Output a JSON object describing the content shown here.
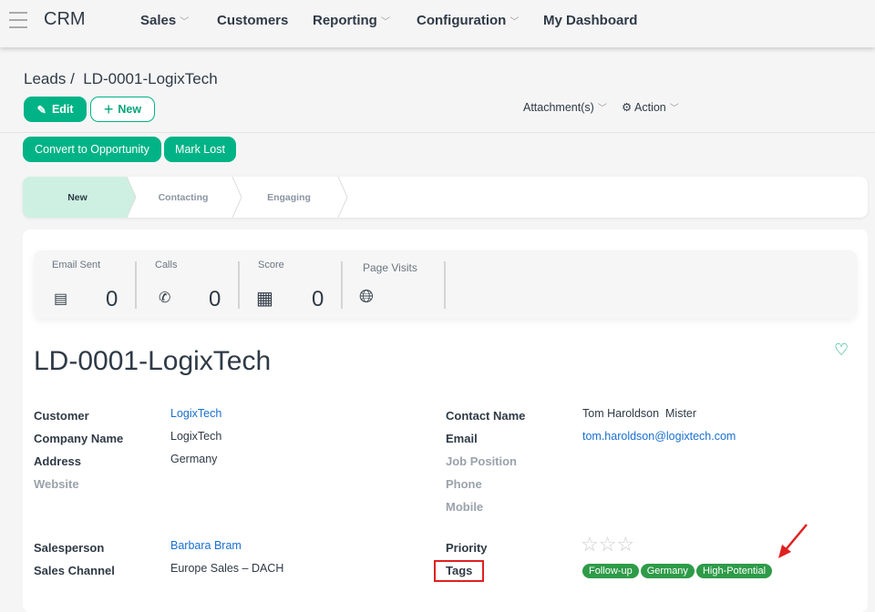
{
  "app": {
    "name": "CRM"
  },
  "nav": [
    {
      "label": "Sales",
      "dropdown": true
    },
    {
      "label": "Customers"
    },
    {
      "label": "Reporting",
      "dropdown": true
    },
    {
      "label": "Configuration",
      "dropdown": true
    },
    {
      "label": "My Dashboard"
    }
  ],
  "breadcrumb": {
    "parent": "Leads",
    "sep": "/",
    "current": "LD-0001-LogixTech"
  },
  "toolbar": {
    "edit": "Edit",
    "new": "New",
    "attachments": "Attachment(s)",
    "action": "Action"
  },
  "actions": {
    "convert": "Convert to Opportunity",
    "mark_lost": "Mark Lost"
  },
  "stages": [
    {
      "label": "New",
      "active": true
    },
    {
      "label": "Contacting"
    },
    {
      "label": "Engaging"
    }
  ],
  "stats": [
    {
      "label": "Email Sent",
      "value": "0",
      "icon": "inbox-icon"
    },
    {
      "label": "Calls",
      "value": "0",
      "icon": "phone-icon"
    },
    {
      "label": "Score",
      "value": "0",
      "icon": "calculator-icon"
    },
    {
      "label": "Page Visits",
      "value": "",
      "icon": "globe-icon"
    }
  ],
  "record": {
    "title": "LD-0001-LogixTech",
    "left": [
      {
        "label": "Customer",
        "value": "LogixTech",
        "link": true
      },
      {
        "label": "Company Name",
        "value": "LogixTech"
      },
      {
        "label": "Address",
        "value": "Germany"
      },
      {
        "label": "Website",
        "value": ""
      }
    ],
    "right": [
      {
        "label": "Contact Name",
        "value": "Tom Haroldson  Mister"
      },
      {
        "label": "Email",
        "value": "tom.haroldson@logixtech.com",
        "link": true
      },
      {
        "label": "Job Position",
        "value": ""
      },
      {
        "label": "Phone",
        "value": ""
      },
      {
        "label": "Mobile",
        "value": ""
      }
    ],
    "salesperson": {
      "label": "Salesperson",
      "value": "Barbara Bram"
    },
    "sales_channel": {
      "label": "Sales Channel",
      "value": "Europe Sales – DACH"
    },
    "priority": {
      "label": "Priority",
      "stars": 3,
      "filled": 0
    },
    "tags": {
      "label": "Tags",
      "items": [
        "Follow-up",
        "Germany",
        "High-Potential"
      ]
    }
  },
  "colors": {
    "primary": "#00b386",
    "tag": "#2e9b48",
    "link": "#1a6fd1",
    "annotation": "#e02020"
  }
}
